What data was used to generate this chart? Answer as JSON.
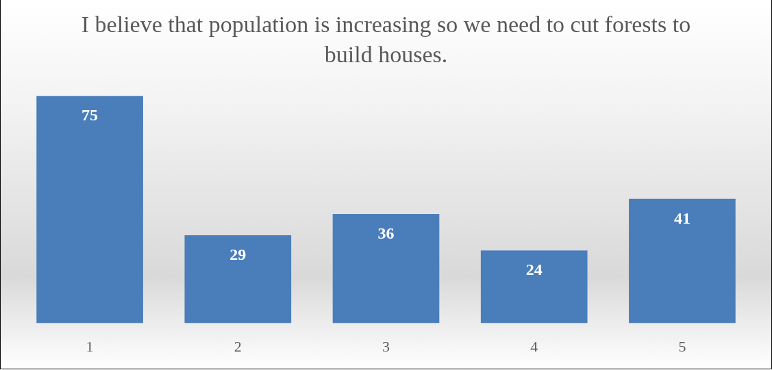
{
  "chart_data": {
    "type": "bar",
    "title": "I believe that population is increasing so we need to cut forests to build houses.",
    "categories": [
      "1",
      "2",
      "3",
      "4",
      "5"
    ],
    "values": [
      75,
      29,
      36,
      24,
      41
    ],
    "color": "#4a7ebb",
    "data_labels": true,
    "grid": false,
    "legend": false,
    "tick_labels": "x"
  }
}
